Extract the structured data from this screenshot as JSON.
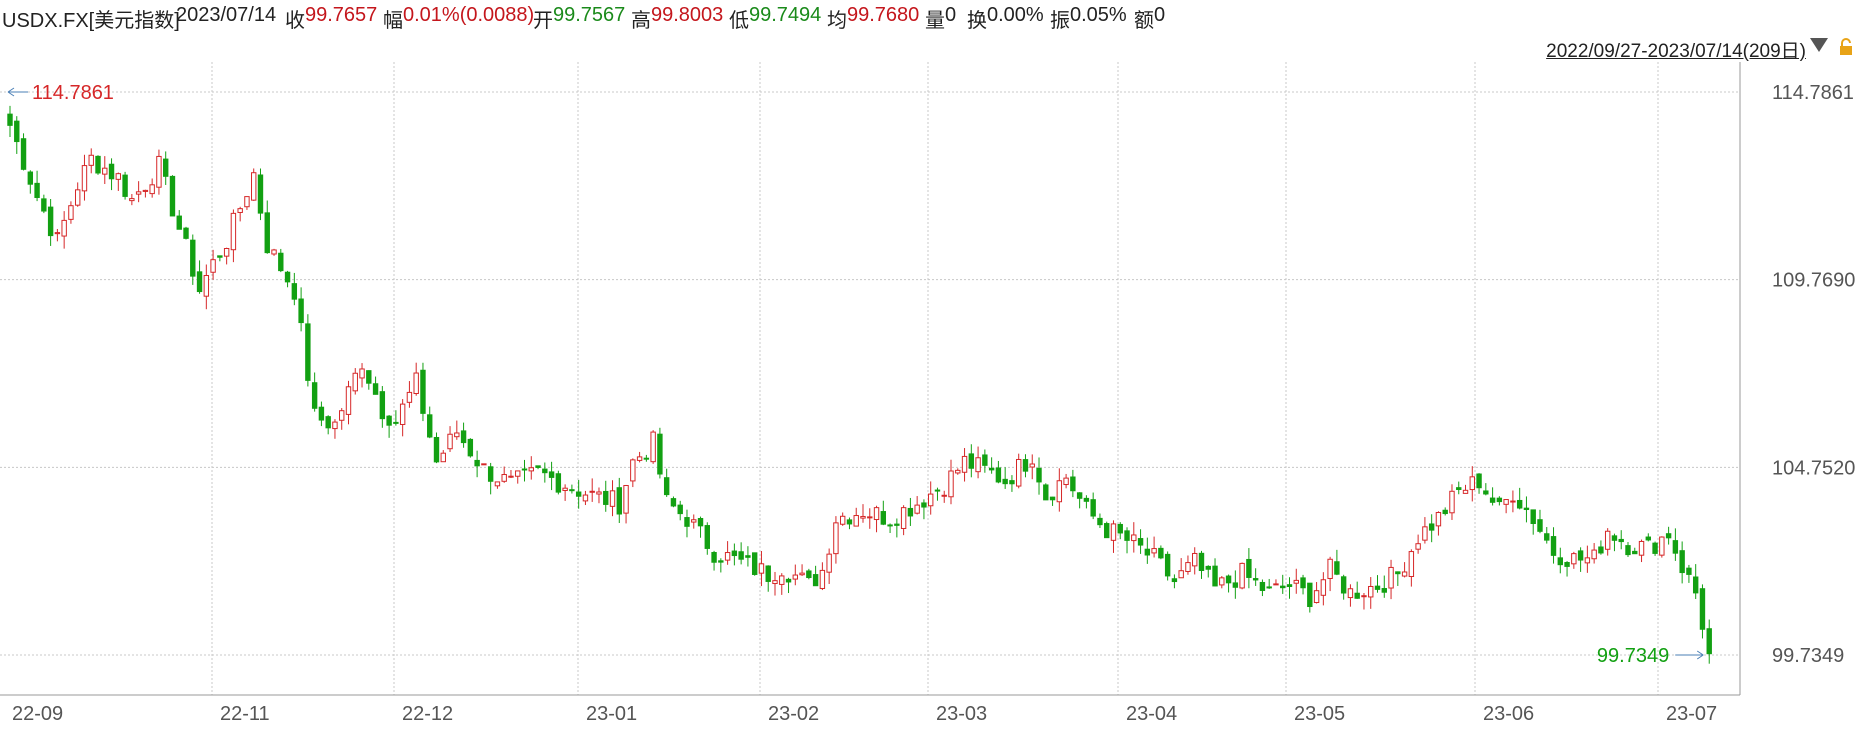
{
  "header": {
    "symbol": "USDX.FX[美元指数]",
    "date": "2023/07/14",
    "close_label": "收",
    "close": "99.7657",
    "change_label": "幅",
    "change": "0.01%(0.0088)",
    "open_label": "开",
    "open": "99.7567",
    "high_label": "高",
    "high": "99.8003",
    "low_label": "低",
    "low": "99.7494",
    "avg_label": "均",
    "avg": "99.7680",
    "volume_label": "量",
    "volume": "0",
    "turnover_label": "换",
    "turnover": "0.00%",
    "amplitude_label": "振",
    "amplitude": "0.05%",
    "amount_label": "额",
    "amount": "0"
  },
  "range_selector": {
    "label": "2022/09/27-2023/07/14(209日)"
  },
  "colors": {
    "up": "#d62728",
    "down": "#12a012",
    "grid": "#c8c8c8",
    "text": "#555555"
  },
  "chart_data": {
    "type": "candlestick",
    "ylim": [
      99.7349,
      114.7861
    ],
    "yticks": [
      "114.7861",
      "109.7690",
      "104.7520",
      "99.7349"
    ],
    "xticks": [
      "22-09",
      "22-11",
      "22-12",
      "23-01",
      "23-02",
      "23-03",
      "23-04",
      "23-05",
      "23-06",
      "23-07"
    ],
    "max_marker": "114.7861",
    "min_marker": "99.7349",
    "anchors": [
      [
        0,
        113.9
      ],
      [
        4,
        112.0
      ],
      [
        7,
        110.8
      ],
      [
        10,
        112.3
      ],
      [
        12,
        113.0
      ],
      [
        16,
        112.5
      ],
      [
        18,
        111.9
      ],
      [
        22,
        112.8
      ],
      [
        24,
        111.7
      ],
      [
        28,
        109.5
      ],
      [
        30,
        110.2
      ],
      [
        32,
        110.8
      ],
      [
        36,
        112.6
      ],
      [
        38,
        110.7
      ],
      [
        42,
        109.5
      ],
      [
        45,
        106.1
      ],
      [
        48,
        105.9
      ],
      [
        52,
        107.6
      ],
      [
        55,
        106.3
      ],
      [
        57,
        106.0
      ],
      [
        60,
        107.0
      ],
      [
        63,
        104.9
      ],
      [
        66,
        105.7
      ],
      [
        70,
        104.7
      ],
      [
        74,
        104.3
      ],
      [
        78,
        104.6
      ],
      [
        82,
        104.3
      ],
      [
        86,
        104.0
      ],
      [
        90,
        103.8
      ],
      [
        92,
        104.9
      ],
      [
        95,
        105.4
      ],
      [
        97,
        103.8
      ],
      [
        100,
        103.4
      ],
      [
        104,
        102.5
      ],
      [
        108,
        102.2
      ],
      [
        112,
        101.9
      ],
      [
        114,
        102.1
      ],
      [
        118,
        101.6
      ],
      [
        120,
        102.0
      ],
      [
        122,
        103.4
      ],
      [
        126,
        103.6
      ],
      [
        130,
        103.4
      ],
      [
        134,
        103.8
      ],
      [
        138,
        104.3
      ],
      [
        141,
        104.9
      ],
      [
        145,
        104.6
      ],
      [
        147,
        104.4
      ],
      [
        150,
        104.9
      ],
      [
        151,
        105.1
      ],
      [
        153,
        104.0
      ],
      [
        156,
        104.5
      ],
      [
        159,
        103.6
      ],
      [
        162,
        103.1
      ],
      [
        166,
        102.7
      ],
      [
        169,
        102.3
      ],
      [
        172,
        101.7
      ],
      [
        175,
        102.2
      ],
      [
        178,
        101.5
      ],
      [
        182,
        101.9
      ],
      [
        186,
        101.4
      ],
      [
        189,
        101.6
      ],
      [
        192,
        101.3
      ],
      [
        195,
        102.0
      ],
      [
        198,
        101.4
      ],
      [
        202,
        101.6
      ],
      [
        205,
        101.9
      ],
      [
        208,
        102.9
      ],
      [
        211,
        103.4
      ],
      [
        214,
        104.1
      ],
      [
        217,
        104.4
      ],
      [
        220,
        103.6
      ],
      [
        222,
        104.1
      ],
      [
        225,
        103.4
      ],
      [
        228,
        102.5
      ],
      [
        231,
        102.3
      ],
      [
        234,
        102.3
      ],
      [
        236,
        103.1
      ],
      [
        239,
        102.7
      ],
      [
        242,
        102.6
      ],
      [
        245,
        103.0
      ],
      [
        247,
        102.1
      ],
      [
        249,
        101.4
      ],
      [
        251,
        99.77
      ]
    ]
  }
}
